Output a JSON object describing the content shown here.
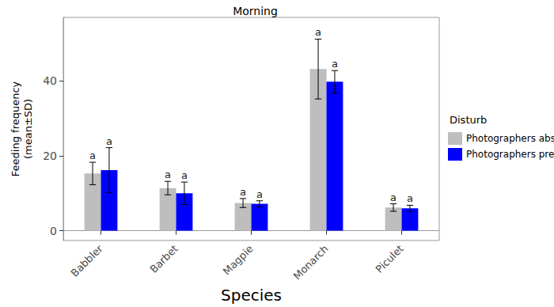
{
  "chart_data": {
    "type": "bar",
    "title": "Morning",
    "x_label": "Species",
    "y_label": "Feeding frequency\n(mean±SD)",
    "legend_title": "Disturb",
    "legend": "right",
    "categories": [
      "Babbler",
      "Barbet",
      "Magpie",
      "Monarch",
      "Piculet"
    ],
    "series": [
      {
        "name": "Photographers absent",
        "color": "#bebebe",
        "values": [
          15.3,
          11.4,
          7.4,
          43.2,
          6.2
        ],
        "sd": [
          3.0,
          1.8,
          1.2,
          8.0,
          1.0
        ],
        "group_labels": [
          "a",
          "a",
          "a",
          "a",
          "a"
        ]
      },
      {
        "name": "Photographers present",
        "color": "#0000ff",
        "values": [
          16.2,
          10.0,
          7.2,
          39.8,
          6.0
        ],
        "sd": [
          6.0,
          3.0,
          0.8,
          3.0,
          0.8
        ],
        "group_labels": [
          "a",
          "a",
          "a",
          "a",
          "a"
        ]
      }
    ],
    "ylim": [
      -2.6,
      57
    ],
    "yticks": [
      0,
      20,
      40
    ],
    "grid": false
  }
}
